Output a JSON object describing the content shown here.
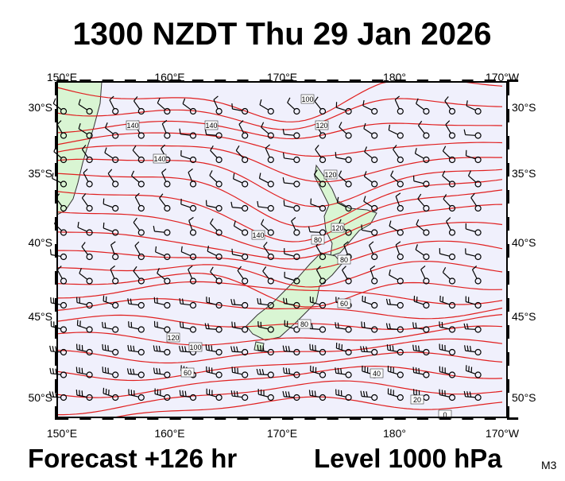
{
  "header": {
    "title": "1300 NZDT Thu 29 Jan 2026"
  },
  "axes": {
    "top": [
      "150°E",
      "160°E",
      "170°E",
      "180°",
      "170°W"
    ],
    "bottom": [
      "150°E",
      "160°E",
      "170°E",
      "180°",
      "170°W"
    ],
    "left": [
      "30°S",
      "35°S",
      "40°S",
      "45°S",
      "50°S"
    ],
    "right": [
      "30°S",
      "35°S",
      "40°S",
      "45°S",
      "50°S"
    ]
  },
  "contour_labels": [
    "100",
    "140",
    "120",
    "140",
    "140",
    "120",
    "120",
    "80",
    "140",
    "120",
    "100",
    "80",
    "60",
    "60",
    "80",
    "40",
    "20",
    "0"
  ],
  "footer": {
    "forecast": "Forecast +126 hr",
    "level": "Level 1000 hPa",
    "model": "M3"
  }
}
